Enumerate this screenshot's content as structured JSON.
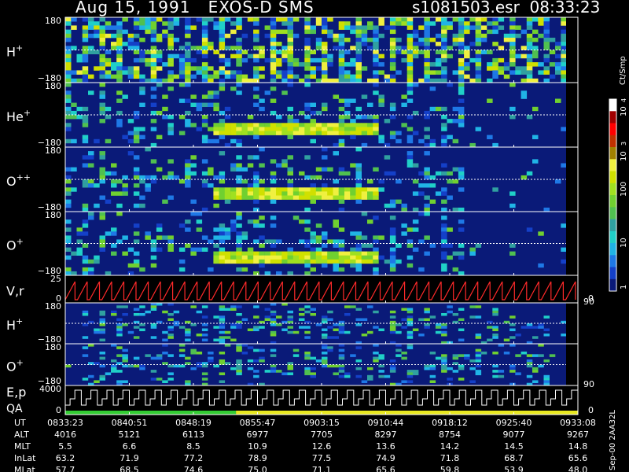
{
  "header": {
    "date": "Aug 15, 1991",
    "instrument": "EXOS-D SMS",
    "file": "s1081503.esr",
    "time": "08:33:23"
  },
  "colors": {
    "background": "#000000",
    "empty_bin": "#0a1a78",
    "axis": "#ffffff",
    "velocity_trace": "#ff2a2a",
    "qa_green": "#33cc33",
    "qa_yellow": "#e8e820"
  },
  "colorbar": {
    "unit": "Ct/Smp",
    "tick_labels": [
      "1",
      "10",
      "100",
      "10",
      "3",
      "10",
      "4"
    ],
    "levels": [
      1,
      10,
      100,
      1000,
      10000
    ],
    "colors": [
      "#0a1a78",
      "#1440c8",
      "#1e78e6",
      "#20b4e6",
      "#20d0c8",
      "#30a0a0",
      "#50c050",
      "#70d030",
      "#a0e020",
      "#d0e000",
      "#f0f040",
      "#a08000",
      "#c03000",
      "#ff0000",
      "#a00000",
      "#ffffff"
    ]
  },
  "chart_data": {
    "type": "heatmap",
    "panels": [
      {
        "name": "H",
        "superscript": "+",
        "ylabels": [
          "180",
          "−180"
        ]
      },
      {
        "name": "He",
        "superscript": "+",
        "ylabels": [
          "180",
          "−180"
        ]
      },
      {
        "name": "O",
        "superscript": "++",
        "ylabels": [
          "180",
          "−180"
        ]
      },
      {
        "name": "O",
        "superscript": "+",
        "ylabels": [
          "180",
          "−180"
        ]
      },
      {
        "name": "V,r",
        "superscript": "",
        "ylabels": [
          "25",
          "0"
        ],
        "right_label": "90",
        "right_label_bottom": "0"
      },
      {
        "name": "H",
        "superscript": "+",
        "ylabels": [
          "180",
          "−180"
        ]
      },
      {
        "name": "O",
        "superscript": "+",
        "ylabels": [
          "180",
          "−180"
        ],
        "right_label": "90"
      },
      {
        "name": "E,p",
        "name2": "QA",
        "superscript": "",
        "ylabels": [
          "4000",
          "0"
        ],
        "right_label_bottom": "0"
      }
    ],
    "x_range_ut": [
      "08:33:23",
      "09:33:08"
    ],
    "ephemeris": {
      "row_labels": [
        "UT",
        "ALT",
        "MLT",
        "InLat",
        "MLat"
      ],
      "columns": [
        [
          "0833:23",
          "4016",
          "5.5",
          "63.2",
          "57.7"
        ],
        [
          "0840:51",
          "5121",
          "6.6",
          "71.9",
          "68.5"
        ],
        [
          "0848:19",
          "6113",
          "8.5",
          "77.2",
          "74.6"
        ],
        [
          "0855:47",
          "6977",
          "10.9",
          "78.9",
          "75.0"
        ],
        [
          "0903:15",
          "7705",
          "12.6",
          "77.5",
          "71.1"
        ],
        [
          "0910:44",
          "8297",
          "13.6",
          "74.9",
          "65.6"
        ],
        [
          "0918:12",
          "8754",
          "14.2",
          "71.8",
          "59.8"
        ],
        [
          "0925:40",
          "9077",
          "14.5",
          "68.7",
          "53.9"
        ],
        [
          "0933:08",
          "9267",
          "14.8",
          "65.6",
          "48.0"
        ]
      ]
    },
    "footer_note": "Sep-00 2AA32L"
  }
}
